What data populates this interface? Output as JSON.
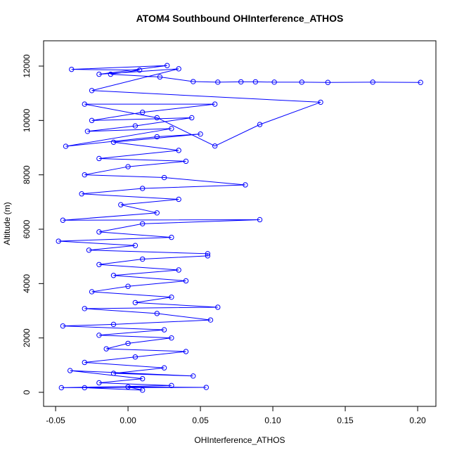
{
  "chart_data": {
    "type": "line",
    "title": "ATOM4 Southbound OHInterference_ATHOS",
    "xlabel": "OHInterference_ATHOS",
    "ylabel": "Altitude (m)",
    "color": "#0000ff",
    "markers": true,
    "x": [
      0.202,
      0.169,
      0.138,
      0.12,
      0.101,
      0.088,
      0.078,
      0.062,
      0.045,
      0.022,
      -0.012,
      0.008,
      -0.039,
      0.027,
      -0.02,
      0.035,
      -0.025,
      0.133,
      0.091,
      0.06,
      0.02,
      -0.03,
      0.06,
      0.01,
      -0.025,
      0.044,
      0.005,
      -0.028,
      0.03,
      -0.043,
      0.02,
      0.05,
      -0.01,
      0.035,
      -0.02,
      0.04,
      0.0,
      -0.03,
      0.025,
      0.081,
      0.01,
      -0.032,
      0.035,
      -0.005,
      0.02,
      -0.045,
      0.091,
      0.01,
      -0.02,
      0.03,
      -0.048,
      0.005,
      -0.027,
      0.055,
      0.055,
      0.01,
      -0.02,
      0.035,
      -0.01,
      0.04,
      0.0,
      -0.025,
      0.03,
      0.005,
      0.062,
      -0.03,
      0.02,
      0.057,
      -0.01,
      -0.045,
      0.025,
      -0.02,
      0.03,
      0.0,
      -0.015,
      0.04,
      0.005,
      -0.03,
      0.025,
      -0.01,
      0.045,
      -0.04,
      0.01,
      -0.02,
      0.03,
      -0.046,
      0.054,
      0.0,
      0.01,
      -0.03
    ],
    "values": [
      11400,
      11410,
      11400,
      11410,
      11410,
      11420,
      11420,
      11410,
      11430,
      11600,
      11700,
      11850,
      11880,
      12020,
      11700,
      11900,
      11100,
      10670,
      9850,
      9060,
      10100,
      10600,
      10600,
      10300,
      10000,
      10100,
      9800,
      9600,
      9700,
      9050,
      9400,
      9500,
      9200,
      8900,
      8600,
      8500,
      8300,
      8000,
      7900,
      7630,
      7500,
      7300,
      7100,
      6900,
      6600,
      6330,
      6350,
      6200,
      5900,
      5700,
      5560,
      5400,
      5230,
      5100,
      5020,
      4900,
      4700,
      4500,
      4300,
      4100,
      3900,
      3700,
      3500,
      3300,
      3130,
      3080,
      2900,
      2660,
      2500,
      2440,
      2300,
      2100,
      2000,
      1800,
      1600,
      1500,
      1300,
      1100,
      900,
      700,
      600,
      800,
      500,
      350,
      250,
      170,
      180,
      200,
      80,
      170
    ],
    "xlim": [
      -0.0583,
      0.2126
    ],
    "ylim": [
      -517,
      12931
    ],
    "xticks": [
      -0.05,
      {
        "value": 0,
        "label": "0.00"
      },
      0.05,
      {
        "value": 0.1,
        "label": "0.10"
      },
      0.15,
      {
        "value": 0.2,
        "label": "0.20"
      }
    ],
    "yticks": [
      0,
      2000,
      4000,
      6000,
      8000,
      10000,
      12000
    ]
  }
}
